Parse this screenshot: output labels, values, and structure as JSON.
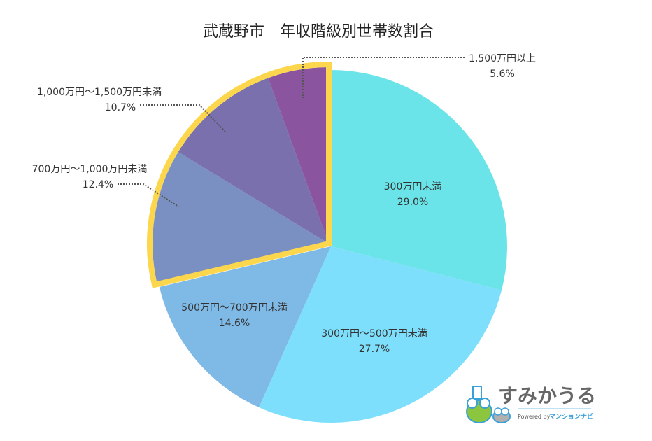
{
  "chart_data": {
    "type": "pie",
    "title": "武蔵野市　年収階級別世帯数割合",
    "start_angle": "top, clockwise",
    "highlight_color": "#fcd74e",
    "slices": [
      {
        "label": "300万円未満",
        "value": 29.0,
        "value_label": "29.0%",
        "color": "#6ae4e8",
        "highlighted": false
      },
      {
        "label": "300万円～500万円未満",
        "value": 27.7,
        "value_label": "27.7%",
        "color": "#7ddffb",
        "highlighted": false
      },
      {
        "label": "500万円～700万円未満",
        "value": 14.6,
        "value_label": "14.6%",
        "color": "#7fb9e6",
        "highlighted": false
      },
      {
        "label": "700万円～1,000万円未満",
        "value": 12.4,
        "value_label": "12.4%",
        "color": "#7a90c2",
        "highlighted": true
      },
      {
        "label": "1,000万円～1,500万円未満",
        "value": 10.7,
        "value_label": "10.7%",
        "color": "#7a70ad",
        "highlighted": true
      },
      {
        "label": "1,500万円以上",
        "value": 5.6,
        "value_label": "5.6%",
        "color": "#8a559e",
        "highlighted": true
      }
    ]
  },
  "logo": {
    "name": "すみかうる",
    "powered_by": "Powered by",
    "brand": "マンションナビ"
  }
}
